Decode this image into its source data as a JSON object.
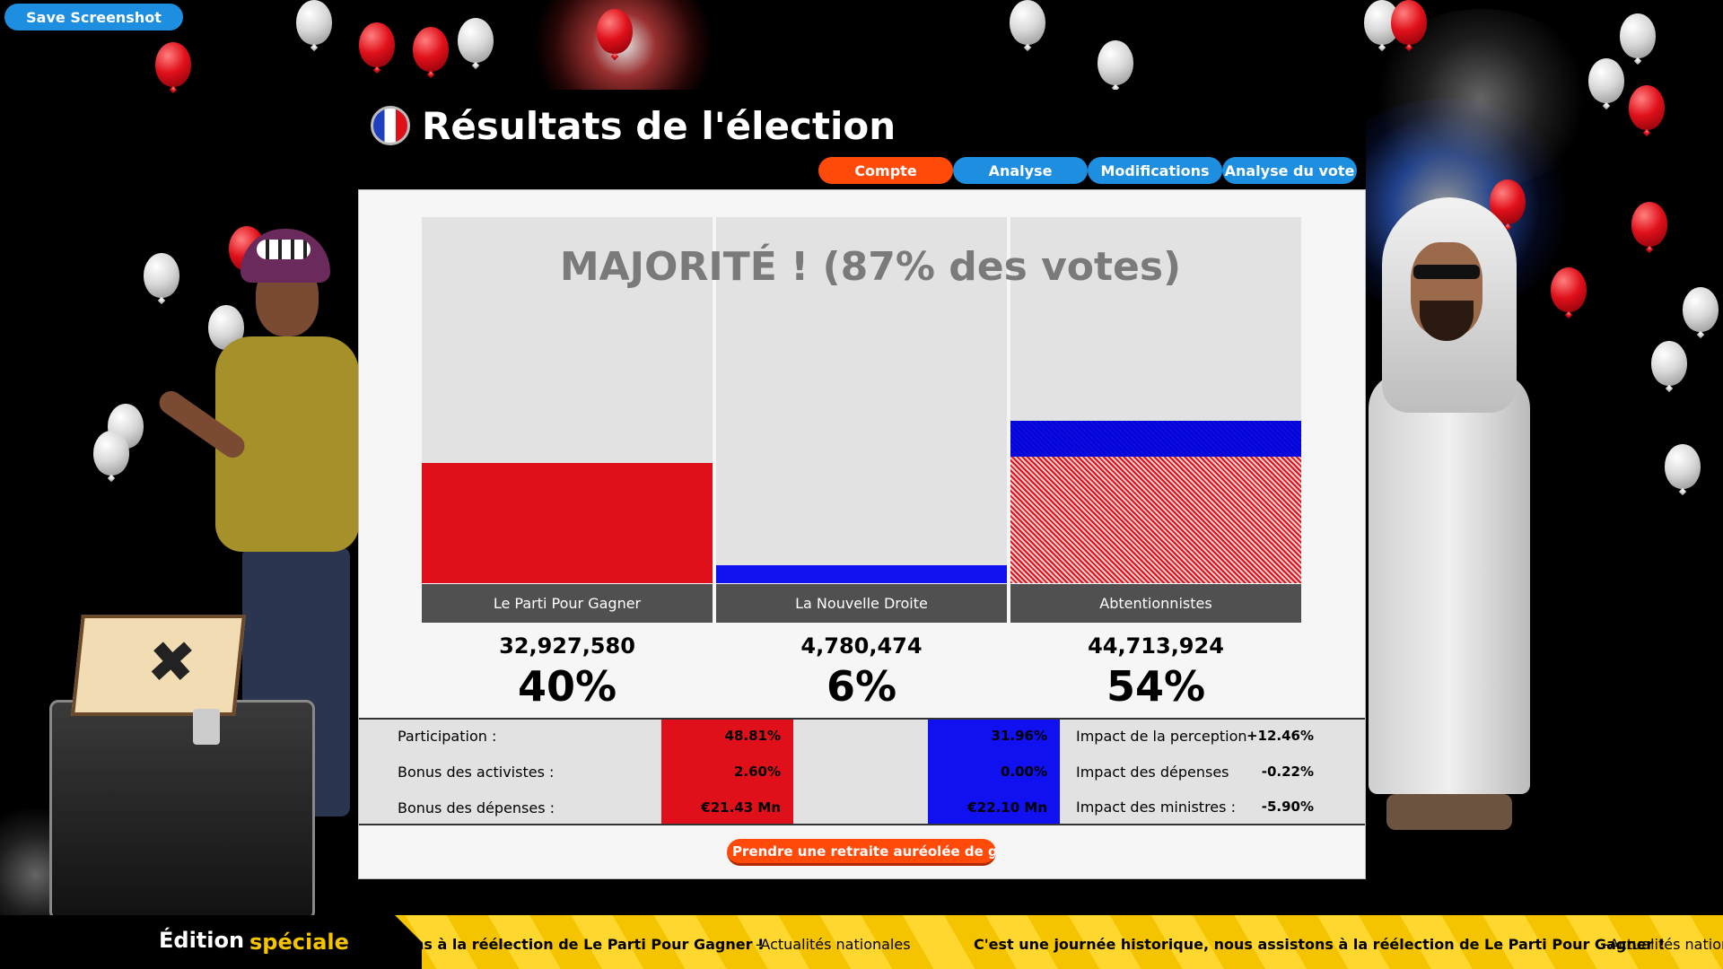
{
  "toolbar": {
    "save_label": "Save Screenshot"
  },
  "header": {
    "title": "Résultats de l'élection",
    "flag_icon": "france-flag-icon",
    "tabs": [
      {
        "label": "Compte",
        "active": true
      },
      {
        "label": "Analyse",
        "active": false
      },
      {
        "label": "Modifications",
        "active": false
      },
      {
        "label": "Analyse du vote",
        "active": false
      }
    ]
  },
  "results": {
    "majority_text": "MAJORITÉ ! (87% des votes)",
    "parties": [
      {
        "name": "Le Parti Pour Gagner",
        "votes": "32,927,580",
        "percent": "40%",
        "share": 40,
        "color": "#e0101a"
      },
      {
        "name": "La Nouvelle Droite",
        "votes": "4,780,474",
        "percent": "6%",
        "share": 6,
        "color": "#1010f0"
      },
      {
        "name": "Abtentionnistes",
        "votes": "44,713,924",
        "percent": "54%",
        "share": 54,
        "color": "#e0101a"
      }
    ]
  },
  "stats": {
    "labels": [
      "Participation :",
      "Bonus des activistes :",
      "Bonus des dépenses :"
    ],
    "red_values": [
      "48.81%",
      "2.60%",
      "€21.43 Mn"
    ],
    "blue_values": [
      "31.96%",
      "0.00%",
      "€22.10 Mn"
    ],
    "impacts": [
      {
        "label": "Impact de la perception",
        "value": "+12.46%"
      },
      {
        "label": "Impact des dépenses",
        "value": "-0.22%"
      },
      {
        "label": "Impact des ministres :",
        "value": "-5.90%"
      }
    ],
    "colors": {
      "red": "#e0101a",
      "blue": "#1010f0"
    }
  },
  "actions": {
    "retire_label": "Prendre une retraite auréolée de g..."
  },
  "ticker": {
    "brand_part1": "Édition",
    "brand_part2": "spéciale",
    "items": [
      {
        "headline": "ons à la réélection de Le Parti Pour Gagner !",
        "source": "-Actualités nationales"
      },
      {
        "headline": "C'est une journée historique, nous assistons à la réélection de Le Parti Pour Gagner !",
        "source": "-Actualités nation"
      }
    ]
  }
}
